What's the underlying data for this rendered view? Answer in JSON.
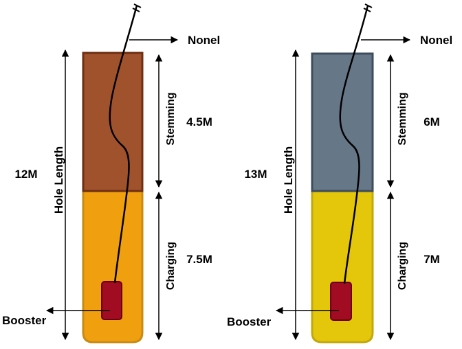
{
  "holes": [
    {
      "hole_length_label": "Hole Length",
      "hole_length_value": "12M",
      "nonel_label": "Nonel",
      "stemming_label": "Stemming",
      "stemming_value": "4.5M",
      "charging_label": "Charging",
      "charging_value": "7.5M",
      "booster_label": "Booster",
      "colors": {
        "stemming": "#A0522D",
        "stemming_border": "#6E2F12",
        "charging": "#F0A00F",
        "charging_border": "#C98A10",
        "booster": "#A10C22"
      }
    },
    {
      "hole_length_label": "Hole Length",
      "hole_length_value": "13M",
      "nonel_label": "Nonel",
      "stemming_label": "Stemming",
      "stemming_value": "6M",
      "charging_label": "Charging",
      "charging_value": "7M",
      "booster_label": "Booster",
      "colors": {
        "stemming": "#667788",
        "stemming_border": "#3E4D5C",
        "charging": "#E4C60A",
        "charging_border": "#C2A80C",
        "booster": "#A10C22"
      }
    }
  ]
}
